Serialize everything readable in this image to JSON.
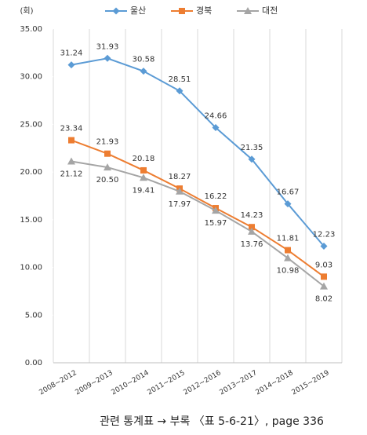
{
  "chart_data": {
    "type": "line",
    "unit_label": "(회)",
    "categories": [
      "2008~2012",
      "2009~2013",
      "2010~2014",
      "2011~2015",
      "2012~2016",
      "2013~2017",
      "2014~2018",
      "2015~2019"
    ],
    "series": [
      {
        "name": "울산",
        "color": "#5b9bd5",
        "marker": "diamond",
        "label_position": "above",
        "values": [
          31.24,
          31.93,
          30.58,
          28.51,
          24.66,
          21.35,
          16.67,
          12.23
        ],
        "value_labels": [
          "31.24",
          "31.93",
          "30.58",
          "28.51",
          "24.66",
          "21.35",
          "16.67",
          "12.23"
        ]
      },
      {
        "name": "경북",
        "color": "#ed7d31",
        "marker": "square",
        "label_position": "above",
        "values": [
          23.34,
          21.93,
          20.18,
          18.27,
          16.22,
          14.23,
          11.81,
          9.03
        ],
        "value_labels": [
          "23.34",
          "21.93",
          "20.18",
          "18.27",
          "16.22",
          "14.23",
          "11.81",
          "9.03"
        ]
      },
      {
        "name": "대전",
        "color": "#a5a5a5",
        "marker": "triangle",
        "label_position": "below",
        "values": [
          21.12,
          20.5,
          19.41,
          17.97,
          15.97,
          13.76,
          10.98,
          8.02
        ],
        "value_labels": [
          "21.12",
          "20.50",
          "19.41",
          "17.97",
          "15.97",
          "13.76",
          "10.98",
          "8.02"
        ]
      }
    ],
    "ylim": [
      0,
      35
    ],
    "yticks": [
      {
        "value": 0,
        "label": "0.00"
      },
      {
        "value": 5,
        "label": "5.00"
      },
      {
        "value": 10,
        "label": "10.00"
      },
      {
        "value": 15,
        "label": "15.00"
      },
      {
        "value": 20,
        "label": "20.00"
      },
      {
        "value": 25,
        "label": "25.00"
      },
      {
        "value": 30,
        "label": "30.00"
      },
      {
        "value": 35,
        "label": "35.00"
      }
    ],
    "legend": "top",
    "caption": "관련 통계표 → 부록 〈표 5-6-21〉, page 336"
  }
}
